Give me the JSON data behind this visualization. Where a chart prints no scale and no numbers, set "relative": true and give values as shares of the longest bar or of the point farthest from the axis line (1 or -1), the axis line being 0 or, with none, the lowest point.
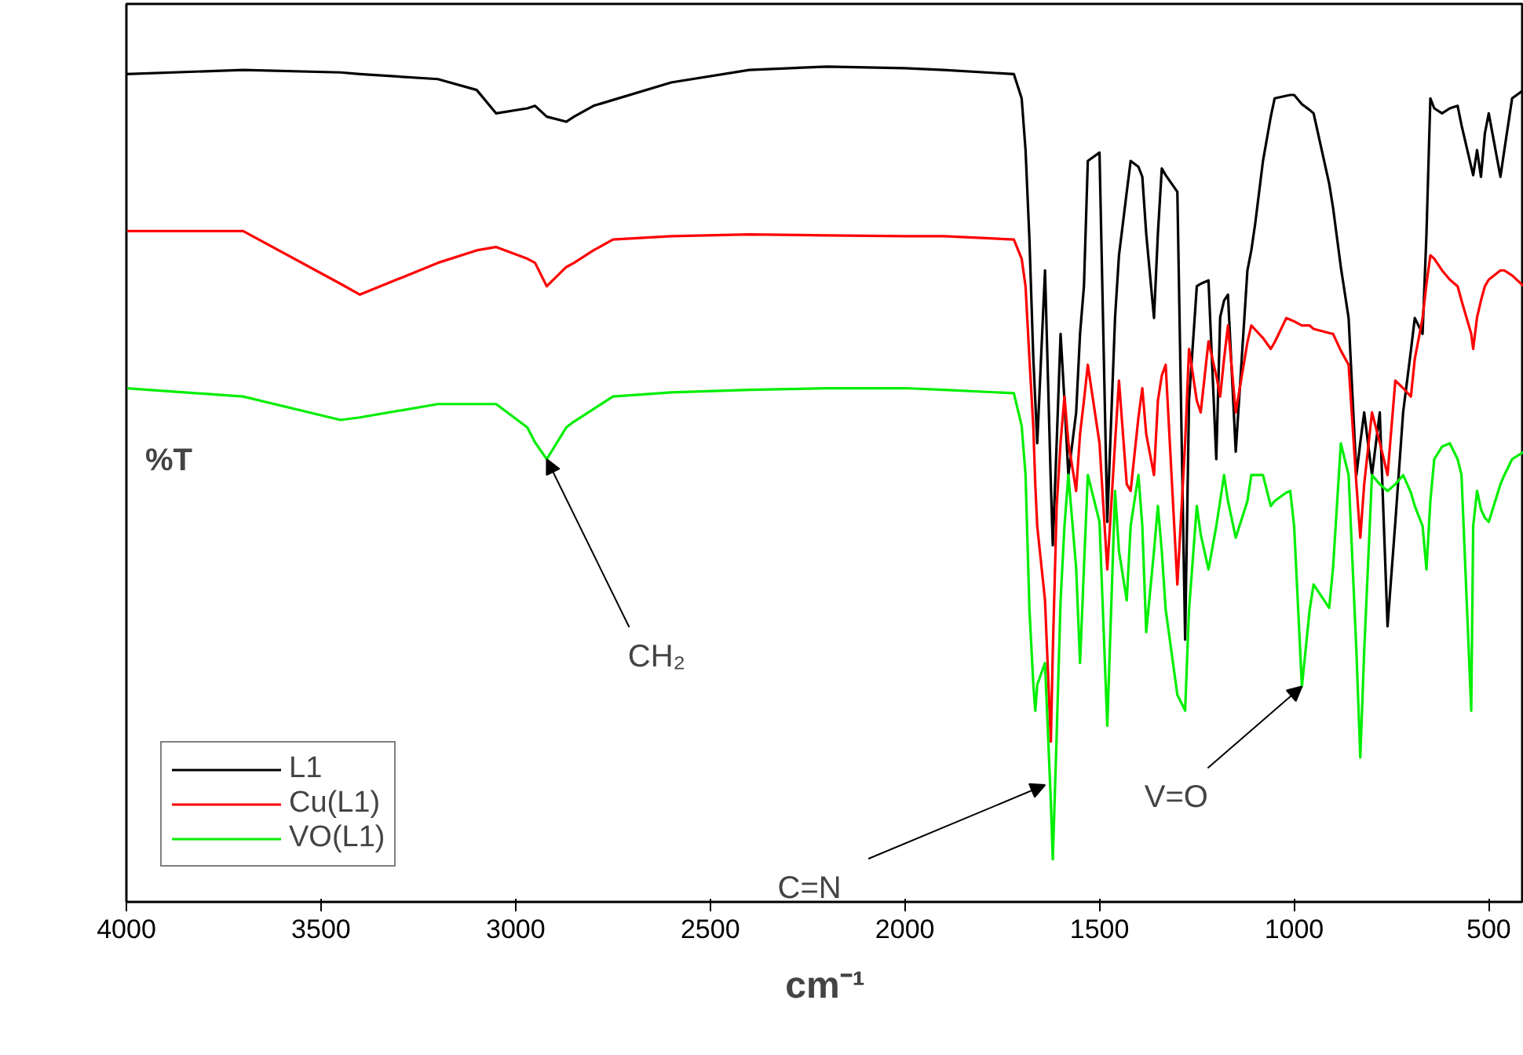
{
  "chart_data": {
    "type": "line",
    "relative": true,
    "xlabel": "cm⁻¹",
    "ylabel": "%T",
    "xlim": [
      4000,
      410
    ],
    "xticks": [
      4000,
      3500,
      3000,
      2500,
      2000,
      1500,
      1000,
      500
    ],
    "tick_labels": "x",
    "grid": false,
    "legend": "bottom left",
    "line_style": "solid",
    "marker": "none",
    "x": [
      4000,
      3700,
      3450,
      3400,
      3200,
      3100,
      3050,
      2970,
      2950,
      2920,
      2870,
      2850,
      2800,
      2750,
      2600,
      2400,
      2200,
      2000,
      1900,
      1720,
      1700,
      1690,
      1680,
      1670,
      1665,
      1660,
      1640,
      1625,
      1620,
      1610,
      1600,
      1590,
      1580,
      1560,
      1550,
      1540,
      1530,
      1500,
      1480,
      1460,
      1450,
      1430,
      1420,
      1400,
      1390,
      1380,
      1360,
      1350,
      1340,
      1330,
      1300,
      1280,
      1270,
      1250,
      1240,
      1220,
      1200,
      1190,
      1180,
      1170,
      1150,
      1120,
      1110,
      1100,
      1080,
      1060,
      1050,
      1020,
      1010,
      1000,
      980,
      960,
      950,
      910,
      900,
      880,
      860,
      840,
      830,
      820,
      800,
      780,
      760,
      740,
      720,
      700,
      690,
      670,
      660,
      650,
      640,
      620,
      600,
      580,
      570,
      545,
      540,
      530,
      520,
      510,
      500,
      470,
      460,
      440,
      410
    ],
    "series": [
      {
        "name": "L1",
        "color": "#000000",
        "values": [
          0.991,
          0.996,
          0.993,
          0.991,
          0.985,
          0.972,
          0.944,
          0.95,
          0.953,
          0.94,
          0.934,
          0.94,
          0.953,
          0.96,
          0.981,
          0.996,
          1.0,
          0.998,
          0.996,
          0.991,
          0.962,
          0.9,
          0.793,
          0.65,
          0.6,
          0.549,
          0.756,
          0.5,
          0.427,
          0.55,
          0.68,
          0.6,
          0.511,
          0.586,
          0.68,
          0.737,
          0.887,
          0.897,
          0.455,
          0.7,
          0.774,
          0.85,
          0.887,
          0.88,
          0.868,
          0.8,
          0.699,
          0.8,
          0.878,
          0.87,
          0.85,
          0.314,
          0.6,
          0.737,
          0.74,
          0.744,
          0.53,
          0.7,
          0.72,
          0.727,
          0.539,
          0.756,
          0.78,
          0.812,
          0.887,
          0.94,
          0.962,
          0.965,
          0.966,
          0.966,
          0.955,
          0.948,
          0.944,
          0.86,
          0.831,
          0.76,
          0.699,
          0.511,
          0.55,
          0.586,
          0.511,
          0.586,
          0.33,
          0.455,
          0.586,
          0.66,
          0.699,
          0.68,
          0.8,
          0.962,
          0.95,
          0.944,
          0.95,
          0.953,
          0.93,
          0.88,
          0.87,
          0.9,
          0.868,
          0.92,
          0.944,
          0.868,
          0.9,
          0.962,
          0.972
        ]
      },
      {
        "name": "Cu(L1)",
        "color": "#ff0000",
        "values": [
          0.803,
          0.803,
          0.74,
          0.727,
          0.765,
          0.78,
          0.784,
          0.77,
          0.765,
          0.737,
          0.76,
          0.765,
          0.78,
          0.793,
          0.797,
          0.799,
          0.798,
          0.797,
          0.797,
          0.793,
          0.77,
          0.737,
          0.65,
          0.568,
          0.5,
          0.45,
          0.361,
          0.192,
          0.3,
          0.474,
          0.55,
          0.605,
          0.55,
          0.492,
          0.56,
          0.6,
          0.643,
          0.549,
          0.398,
          0.55,
          0.624,
          0.5,
          0.492,
          0.58,
          0.615,
          0.56,
          0.511,
          0.6,
          0.63,
          0.643,
          0.38,
          0.55,
          0.662,
          0.6,
          0.586,
          0.671,
          0.63,
          0.605,
          0.65,
          0.69,
          0.586,
          0.67,
          0.69,
          0.685,
          0.675,
          0.662,
          0.67,
          0.699,
          0.697,
          0.695,
          0.69,
          0.69,
          0.686,
          0.681,
          0.68,
          0.66,
          0.643,
          0.5,
          0.436,
          0.5,
          0.586,
          0.55,
          0.511,
          0.624,
          0.615,
          0.605,
          0.65,
          0.699,
          0.74,
          0.774,
          0.77,
          0.756,
          0.745,
          0.737,
          0.72,
          0.68,
          0.662,
          0.7,
          0.72,
          0.737,
          0.745,
          0.756,
          0.756,
          0.75,
          0.737
        ]
      },
      {
        "name": "VO(L1)",
        "color": "#00ee00",
        "values": [
          0.615,
          0.605,
          0.577,
          0.58,
          0.596,
          0.596,
          0.596,
          0.568,
          0.55,
          0.53,
          0.568,
          0.575,
          0.59,
          0.605,
          0.61,
          0.613,
          0.615,
          0.615,
          0.613,
          0.609,
          0.57,
          0.511,
          0.35,
          0.26,
          0.229,
          0.26,
          0.286,
          0.12,
          0.051,
          0.2,
          0.361,
          0.45,
          0.511,
          0.4,
          0.286,
          0.4,
          0.511,
          0.455,
          0.211,
          0.492,
          0.42,
          0.361,
          0.45,
          0.511,
          0.45,
          0.323,
          0.42,
          0.474,
          0.42,
          0.35,
          0.248,
          0.229,
          0.35,
          0.474,
          0.44,
          0.398,
          0.45,
          0.48,
          0.511,
          0.48,
          0.436,
          0.48,
          0.511,
          0.511,
          0.511,
          0.474,
          0.48,
          0.49,
          0.492,
          0.45,
          0.258,
          0.35,
          0.38,
          0.352,
          0.4,
          0.549,
          0.511,
          0.3,
          0.173,
          0.3,
          0.511,
          0.5,
          0.492,
          0.5,
          0.511,
          0.49,
          0.474,
          0.45,
          0.398,
          0.48,
          0.53,
          0.545,
          0.549,
          0.53,
          0.511,
          0.229,
          0.45,
          0.492,
          0.47,
          0.46,
          0.455,
          0.5,
          0.511,
          0.53,
          0.539
        ]
      }
    ],
    "annotations": [
      {
        "text": "CH₂",
        "x": 2920,
        "y": 0.53
      },
      {
        "text": "C=N",
        "x": 1640,
        "y": 0.14
      },
      {
        "text": "V=O",
        "x": 980,
        "y": 0.258
      }
    ]
  }
}
